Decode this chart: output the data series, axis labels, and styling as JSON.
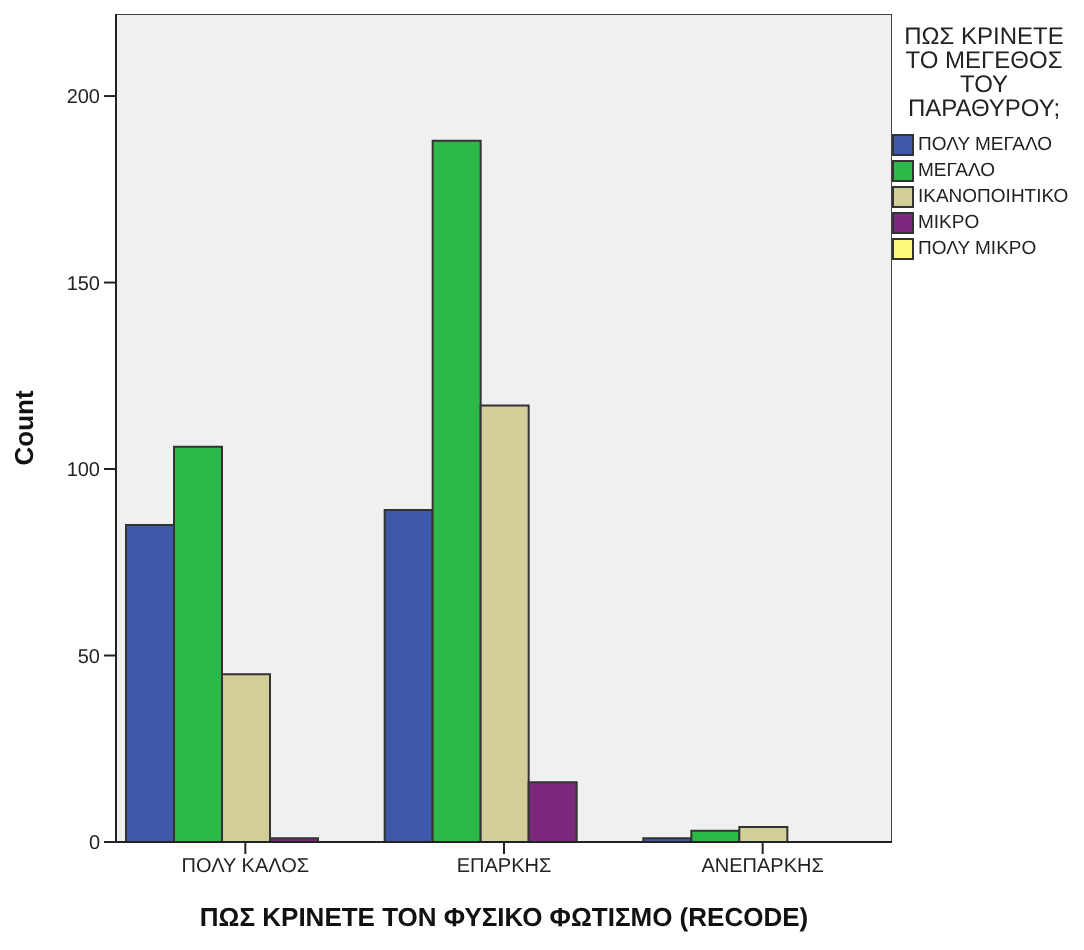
{
  "chart_data": {
    "type": "bar",
    "xlabel": "ΠΩΣ ΚΡΙΝΕΤΕ ΤΟΝ ΦΥΣΙΚΟ ΦΩΤΙΣΜΟ (RECODE)",
    "ylabel": "Count",
    "legend_title": "ΠΩΣ ΚΡΙΝΕΤΕ ΤΟ ΜΕΓΕΘΟΣ ΤΟΥ ΠΑΡΑΘΥΡΟΥ;",
    "categories": [
      "ΠΟΛΥ ΚΑΛΟΣ",
      "ΕΠΑΡΚΗΣ",
      "ΑΝΕΠΑΡΚΗΣ"
    ],
    "series": [
      {
        "name": "ΠΟΛΥ ΜΕΓΑΛΟ",
        "color": "#3e58ac",
        "values": [
          85,
          89,
          1
        ]
      },
      {
        "name": "ΜΕΓΑΛΟ",
        "color": "#2db84a",
        "values": [
          106,
          188,
          3
        ]
      },
      {
        "name": "ΙΚΑΝΟΠΟΙΗΤΙΚΟ",
        "color": "#d3ce97",
        "values": [
          45,
          117,
          4
        ]
      },
      {
        "name": "ΜΙΚΡΟ",
        "color": "#7b287d",
        "values": [
          1,
          16,
          0
        ]
      },
      {
        "name": "ΠΟΛΥ ΜΙΚΡΟ",
        "color": "#fbf87b",
        "values": [
          0,
          0,
          0
        ]
      }
    ],
    "ylim": [
      0,
      222
    ],
    "yticks": [
      0,
      50,
      100,
      150,
      200
    ],
    "legend": "right"
  }
}
